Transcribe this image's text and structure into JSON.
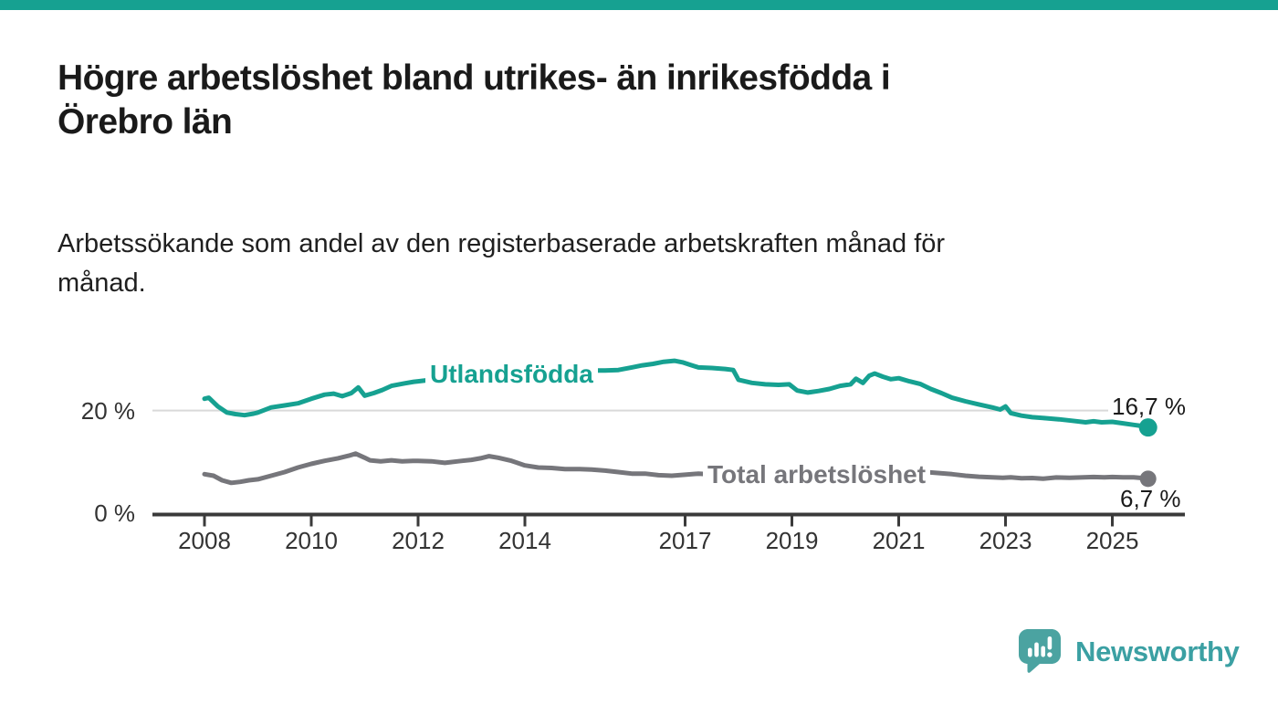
{
  "page": {
    "background": "#FFFFFF",
    "top_bar_color": "#16A191"
  },
  "header": {
    "title_lines": [
      "Högre arbetslöshet bland utrikes- än inrikesfödda i",
      "Örebro län"
    ],
    "subtitle_lines": [
      "Arbetssökande som andel av den registerbaserade arbetskraften månad för",
      "månad."
    ]
  },
  "chart_data": {
    "type": "line",
    "title": "Högre arbetslöshet bland utrikes- än inrikesfödda i Örebro län",
    "subtitle": "Arbetssökande som andel av den registerbaserade arbetskraften månad för månad.",
    "unit": "percent",
    "grid": "horizontal-only",
    "legend_position": "inline-labels",
    "x_range": [
      2008,
      2026.4
    ],
    "y_axis": {
      "range": [
        0,
        32
      ],
      "ticks": [
        {
          "label": "0 %",
          "value": 0
        },
        {
          "label": "20 %",
          "value": 20
        }
      ],
      "grid_values": [
        20
      ]
    },
    "x_axis": {
      "tick_years": [
        2008,
        2010,
        2012,
        2014,
        2017,
        2019,
        2021,
        2023,
        2025
      ]
    },
    "colors": {
      "axis": "#3A3A3A",
      "gridline": "#D9D9D9",
      "tick_text": "#333333"
    },
    "series": [
      {
        "name": "Utlandsfödda",
        "color": "#16A191",
        "end_label": "16,7 %",
        "end_value": 16.7,
        "points": [
          [
            2008.0,
            22.3
          ],
          [
            2008.08,
            22.5
          ],
          [
            2008.25,
            20.8
          ],
          [
            2008.42,
            19.6
          ],
          [
            2008.58,
            19.3
          ],
          [
            2008.75,
            19.1
          ],
          [
            2008.92,
            19.4
          ],
          [
            2009.0,
            19.6
          ],
          [
            2009.25,
            20.6
          ],
          [
            2009.5,
            21.0
          ],
          [
            2009.75,
            21.4
          ],
          [
            2010.0,
            22.3
          ],
          [
            2010.25,
            23.1
          ],
          [
            2010.42,
            23.3
          ],
          [
            2010.58,
            22.8
          ],
          [
            2010.75,
            23.4
          ],
          [
            2010.88,
            24.5
          ],
          [
            2011.0,
            22.9
          ],
          [
            2011.17,
            23.4
          ],
          [
            2011.33,
            24.0
          ],
          [
            2011.5,
            24.8
          ],
          [
            2011.75,
            25.3
          ],
          [
            2011.92,
            25.6
          ],
          [
            2012.0,
            25.7
          ],
          [
            2012.25,
            26.0
          ],
          [
            2012.5,
            26.2
          ],
          [
            2012.75,
            26.3
          ],
          [
            2013.0,
            26.5
          ],
          [
            2013.25,
            26.7
          ],
          [
            2013.5,
            26.9
          ],
          [
            2013.75,
            27.0
          ],
          [
            2014.0,
            27.2
          ],
          [
            2014.25,
            27.3
          ],
          [
            2014.5,
            27.5
          ],
          [
            2014.75,
            27.6
          ],
          [
            2015.0,
            27.7
          ],
          [
            2015.25,
            27.8
          ],
          [
            2015.5,
            27.8
          ],
          [
            2015.75,
            27.9
          ],
          [
            2016.0,
            28.4
          ],
          [
            2016.2,
            28.8
          ],
          [
            2016.4,
            29.1
          ],
          [
            2016.6,
            29.5
          ],
          [
            2016.8,
            29.7
          ],
          [
            2016.95,
            29.4
          ],
          [
            2017.1,
            28.9
          ],
          [
            2017.25,
            28.4
          ],
          [
            2017.5,
            28.3
          ],
          [
            2017.75,
            28.1
          ],
          [
            2017.9,
            27.9
          ],
          [
            2018.0,
            26.0
          ],
          [
            2018.25,
            25.4
          ],
          [
            2018.5,
            25.1
          ],
          [
            2018.75,
            25.0
          ],
          [
            2018.95,
            25.1
          ],
          [
            2019.1,
            23.9
          ],
          [
            2019.3,
            23.5
          ],
          [
            2019.5,
            23.8
          ],
          [
            2019.7,
            24.2
          ],
          [
            2019.9,
            24.8
          ],
          [
            2020.1,
            25.1
          ],
          [
            2020.2,
            26.2
          ],
          [
            2020.33,
            25.4
          ],
          [
            2020.45,
            26.8
          ],
          [
            2020.55,
            27.2
          ],
          [
            2020.7,
            26.6
          ],
          [
            2020.85,
            26.1
          ],
          [
            2021.0,
            26.3
          ],
          [
            2021.2,
            25.7
          ],
          [
            2021.4,
            25.2
          ],
          [
            2021.6,
            24.2
          ],
          [
            2021.8,
            23.4
          ],
          [
            2022.0,
            22.5
          ],
          [
            2022.25,
            21.8
          ],
          [
            2022.5,
            21.2
          ],
          [
            2022.75,
            20.6
          ],
          [
            2022.9,
            20.2
          ],
          [
            2023.0,
            20.8
          ],
          [
            2023.1,
            19.5
          ],
          [
            2023.3,
            19.0
          ],
          [
            2023.5,
            18.7
          ],
          [
            2023.75,
            18.5
          ],
          [
            2024.0,
            18.3
          ],
          [
            2024.25,
            18.0
          ],
          [
            2024.5,
            17.7
          ],
          [
            2024.65,
            17.9
          ],
          [
            2024.8,
            17.7
          ],
          [
            2025.0,
            17.8
          ],
          [
            2025.2,
            17.5
          ],
          [
            2025.4,
            17.2
          ],
          [
            2025.55,
            17.0
          ],
          [
            2025.67,
            16.7
          ]
        ]
      },
      {
        "name": "Total arbetslöshet",
        "color": "#76767B",
        "end_label": "6,7 %",
        "end_value": 6.7,
        "points": [
          [
            2008.0,
            7.6
          ],
          [
            2008.17,
            7.3
          ],
          [
            2008.33,
            6.4
          ],
          [
            2008.5,
            5.9
          ],
          [
            2008.67,
            6.1
          ],
          [
            2008.83,
            6.4
          ],
          [
            2009.0,
            6.6
          ],
          [
            2009.25,
            7.3
          ],
          [
            2009.5,
            8.0
          ],
          [
            2009.75,
            8.9
          ],
          [
            2010.0,
            9.6
          ],
          [
            2010.25,
            10.2
          ],
          [
            2010.5,
            10.7
          ],
          [
            2010.7,
            11.2
          ],
          [
            2010.83,
            11.6
          ],
          [
            2011.0,
            10.8
          ],
          [
            2011.1,
            10.3
          ],
          [
            2011.3,
            10.1
          ],
          [
            2011.5,
            10.3
          ],
          [
            2011.7,
            10.1
          ],
          [
            2011.9,
            10.2
          ],
          [
            2012.0,
            10.2
          ],
          [
            2012.25,
            10.1
          ],
          [
            2012.5,
            9.8
          ],
          [
            2012.75,
            10.1
          ],
          [
            2013.0,
            10.4
          ],
          [
            2013.17,
            10.7
          ],
          [
            2013.33,
            11.1
          ],
          [
            2013.5,
            10.8
          ],
          [
            2013.75,
            10.2
          ],
          [
            2014.0,
            9.3
          ],
          [
            2014.25,
            8.9
          ],
          [
            2014.5,
            8.8
          ],
          [
            2014.75,
            8.6
          ],
          [
            2015.0,
            8.6
          ],
          [
            2015.25,
            8.5
          ],
          [
            2015.5,
            8.3
          ],
          [
            2015.75,
            8.0
          ],
          [
            2016.0,
            7.7
          ],
          [
            2016.25,
            7.7
          ],
          [
            2016.5,
            7.4
          ],
          [
            2016.75,
            7.3
          ],
          [
            2017.0,
            7.5
          ],
          [
            2017.25,
            7.7
          ],
          [
            2017.4,
            7.6
          ],
          [
            2017.6,
            7.4
          ],
          [
            2017.8,
            7.3
          ],
          [
            2018.0,
            7.2
          ],
          [
            2018.5,
            7.0
          ],
          [
            2019.0,
            7.0
          ],
          [
            2019.5,
            7.2
          ],
          [
            2020.0,
            7.6
          ],
          [
            2020.4,
            8.5
          ],
          [
            2020.6,
            8.6
          ],
          [
            2021.0,
            8.4
          ],
          [
            2021.5,
            8.0
          ],
          [
            2022.0,
            7.6
          ],
          [
            2022.25,
            7.3
          ],
          [
            2022.5,
            7.1
          ],
          [
            2022.75,
            7.0
          ],
          [
            2022.95,
            6.9
          ],
          [
            2023.1,
            7.0
          ],
          [
            2023.3,
            6.8
          ],
          [
            2023.5,
            6.85
          ],
          [
            2023.7,
            6.7
          ],
          [
            2023.95,
            6.95
          ],
          [
            2024.2,
            6.9
          ],
          [
            2024.4,
            6.95
          ],
          [
            2024.65,
            7.05
          ],
          [
            2024.85,
            7.0
          ],
          [
            2025.0,
            7.05
          ],
          [
            2025.2,
            7.0
          ],
          [
            2025.4,
            7.0
          ],
          [
            2025.55,
            6.85
          ],
          [
            2025.67,
            6.7
          ]
        ]
      }
    ]
  },
  "footer": {
    "brand": "Newsworthy",
    "logo_color": "#4BA3A1",
    "wordmark_color": "#3BA0A3"
  }
}
